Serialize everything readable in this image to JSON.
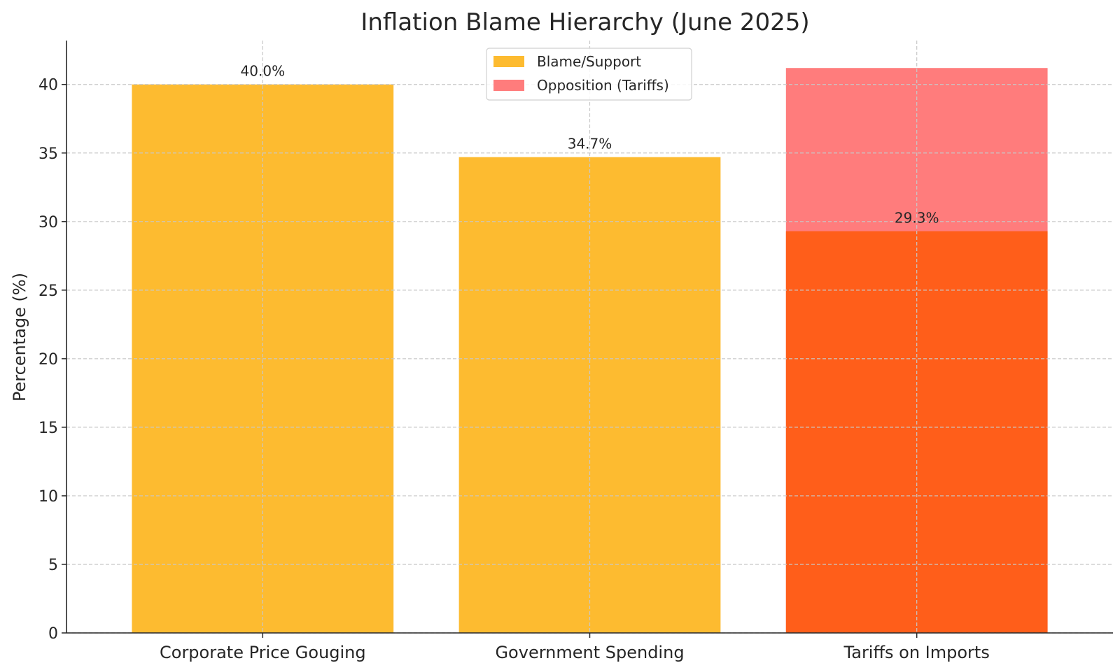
{
  "chart_data": {
    "type": "bar",
    "title": "Inflation Blame Hierarchy (June 2025)",
    "xlabel": "",
    "ylabel": "Percentage (%)",
    "ylim": [
      0,
      43.2
    ],
    "yticks": [
      0,
      5,
      10,
      15,
      20,
      25,
      30,
      35,
      40
    ],
    "grid": true,
    "legend_position": "top-center",
    "categories": [
      "Corporate Price Gouging",
      "Government Spending",
      "Tariffs on Imports"
    ],
    "series": [
      {
        "name": "Blame/Support",
        "values": [
          40.0,
          34.7,
          29.3
        ],
        "colors": [
          "#fdbb30",
          "#fdbb30",
          "#ff5e1a"
        ],
        "data_labels": [
          "40.0%",
          "34.7%",
          "29.3%"
        ]
      },
      {
        "name": "Opposition (Tariffs)",
        "values": [
          null,
          null,
          41.2
        ],
        "color": "#ff7c7c"
      }
    ],
    "legend": [
      {
        "label": "Blame/Support",
        "color": "#fdbb30"
      },
      {
        "label": "Opposition (Tariffs)",
        "color": "#ff7c7c"
      }
    ]
  }
}
